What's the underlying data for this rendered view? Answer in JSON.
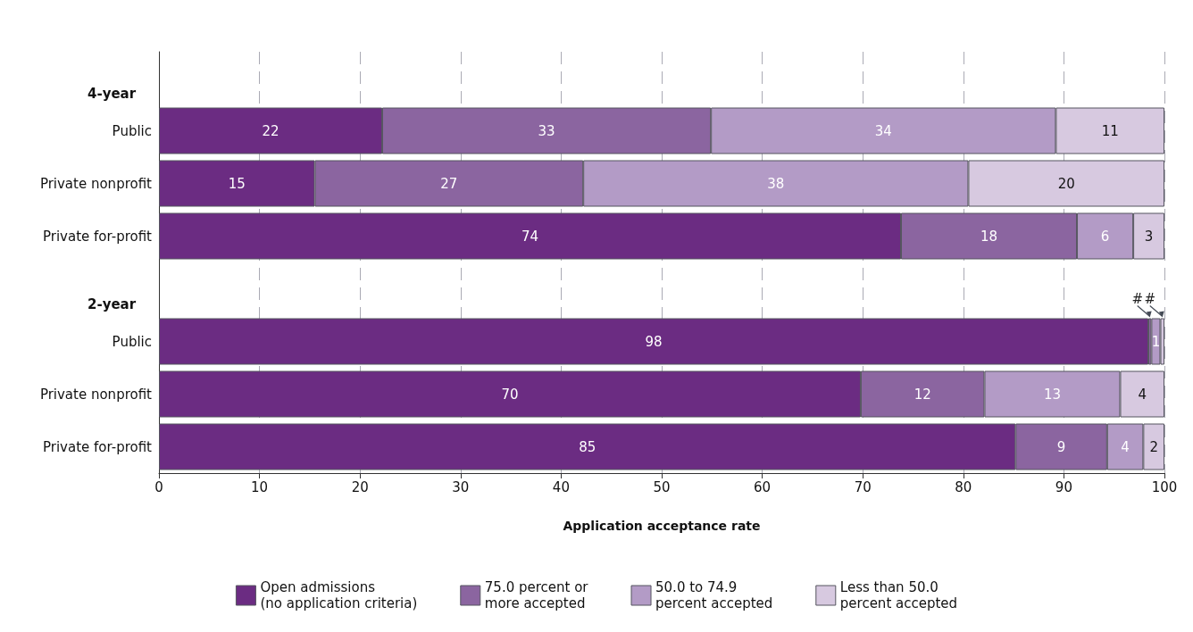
{
  "chart_data": {
    "type": "bar",
    "orientation": "horizontal",
    "stacked": true,
    "categories": [
      null,
      "Public",
      "Private nonprofit",
      "Private for-profit",
      null,
      "Public",
      "Private nonprofit",
      "Private for-profit"
    ],
    "annotations": [
      "4-year",
      "2-year"
    ],
    "series": [
      {
        "name": "Open admissions\n(no application criteria)",
        "color": "#6b2c82",
        "values": [
          null,
          22.2,
          15.5,
          73.8,
          null,
          98.4,
          69.8,
          85.2
        ],
        "value_labels": [
          null,
          "22",
          "15",
          "74",
          null,
          "98",
          "70",
          "85"
        ]
      },
      {
        "name": "75.0 percent or\nmore accepted",
        "color": "#8b65a0",
        "values": [
          null,
          32.7,
          26.7,
          17.5,
          null,
          0.3,
          12.3,
          9.1
        ],
        "value_labels": [
          null,
          "33",
          "27",
          "18",
          null,
          "#",
          "12",
          "9"
        ]
      },
      {
        "name": "50.0 to 74.9\npercent accepted",
        "color": "#b39bc6",
        "values": [
          null,
          34.3,
          38.3,
          5.6,
          null,
          0.9,
          13.5,
          3.6
        ],
        "value_labels": [
          null,
          "34",
          "38",
          "6",
          null,
          "1",
          "13",
          "4"
        ]
      },
      {
        "name": "Less than 50.0\npercent accepted",
        "color": "#d7c9e0",
        "values": [
          null,
          10.8,
          19.5,
          3.1,
          null,
          0.4,
          4.4,
          2.1
        ],
        "value_labels": [
          null,
          "11",
          "20",
          "3",
          null,
          "#",
          "4",
          "2"
        ]
      }
    ],
    "xlabel": "Application acceptance rate",
    "xlim": [
      0,
      100
    ],
    "xticks": [
      0,
      10,
      20,
      30,
      40,
      50,
      60,
      70,
      80,
      90,
      100
    ],
    "grid": "x",
    "legend": "bottom"
  }
}
